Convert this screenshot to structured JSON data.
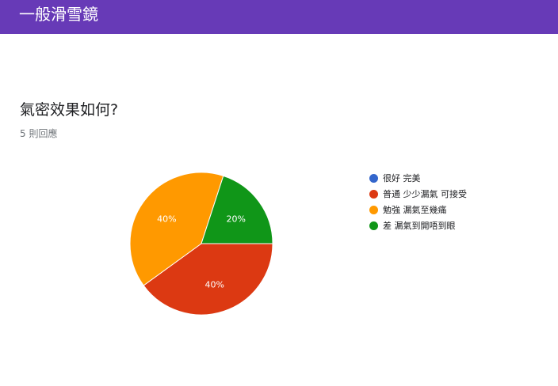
{
  "header": {
    "title": "一般滑雪鏡",
    "color": "#673ab7"
  },
  "question": {
    "title": "氣密效果如何?",
    "response_count": "5 則回應"
  },
  "chart_data": {
    "type": "pie",
    "title": "",
    "legend_position": "right",
    "slices": [
      {
        "label": "很好 完美",
        "value": 0,
        "percent_label": "",
        "color": "#3366cc"
      },
      {
        "label": "普通 少少漏氣 可接受",
        "value": 2,
        "percent_label": "40%",
        "color": "#dc3912"
      },
      {
        "label": "勉強 漏氣至幾痛",
        "value": 2,
        "percent_label": "40%",
        "color": "#ff9900"
      },
      {
        "label": "差 漏氣到開唔到眼",
        "value": 1,
        "percent_label": "20%",
        "color": "#109618"
      }
    ]
  }
}
